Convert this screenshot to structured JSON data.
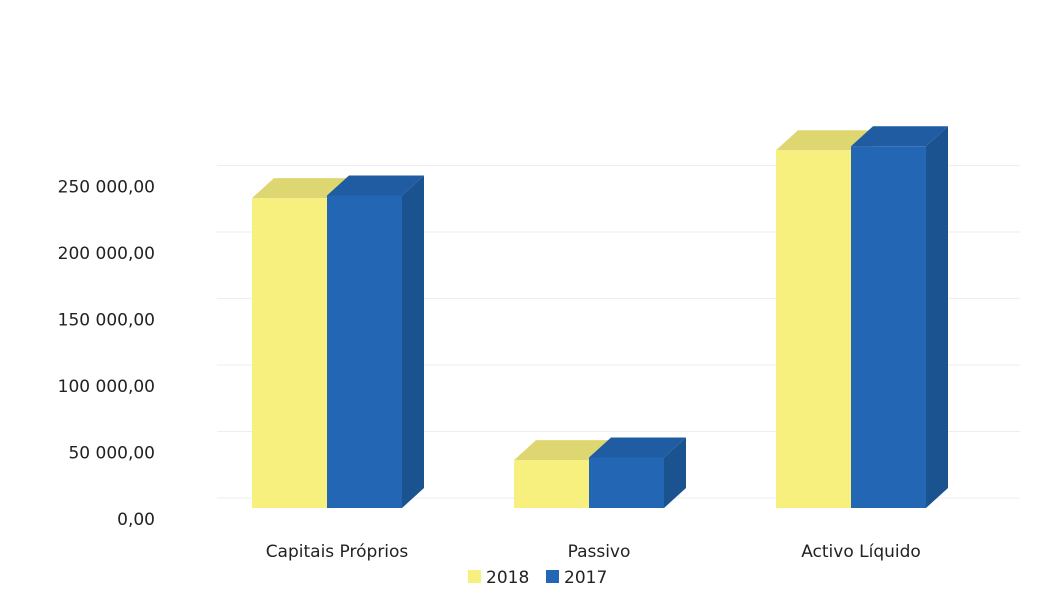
{
  "chart_data": {
    "type": "bar3d",
    "categories": [
      "Capitais Próprios",
      "Passivo",
      "Activo Líquido"
    ],
    "series": [
      {
        "name": "2018",
        "color": "#f7ef7e",
        "values": [
          233000,
          36000,
          269000
        ]
      },
      {
        "name": "2017",
        "color": "#2266b4",
        "values": [
          235000,
          38000,
          272000
        ]
      }
    ],
    "ylim": [
      0,
      300000
    ],
    "yticks": [
      {
        "value": 0,
        "label": "0,00"
      },
      {
        "value": 50000,
        "label": "50 000,00"
      },
      {
        "value": 100000,
        "label": "100 000,00"
      },
      {
        "value": 150000,
        "label": "150 000,00"
      },
      {
        "value": 200000,
        "label": "200 000,00"
      },
      {
        "value": 250000,
        "label": "250 000,00"
      }
    ],
    "grid": true,
    "legend": "bottom"
  }
}
